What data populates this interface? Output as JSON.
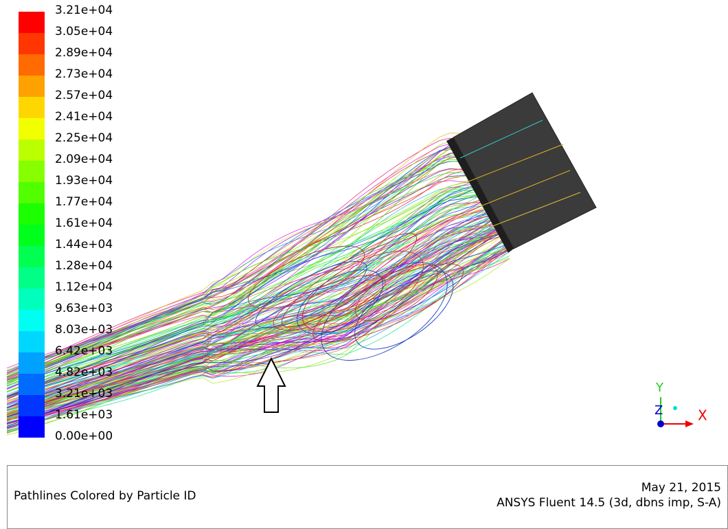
{
  "colorbar": {
    "labels": [
      "3.21e+04",
      "3.05e+04",
      "2.89e+04",
      "2.73e+04",
      "2.57e+04",
      "2.41e+04",
      "2.25e+04",
      "2.09e+04",
      "1.93e+04",
      "1.77e+04",
      "1.61e+04",
      "1.44e+04",
      "1.28e+04",
      "1.12e+04",
      "9.63e+03",
      "8.03e+03",
      "6.42e+03",
      "4.82e+03",
      "3.21e+03",
      "1.61e+03",
      "0.00e+00"
    ]
  },
  "triad": {
    "x": "X",
    "y": "Y",
    "z": "Z"
  },
  "footer": {
    "title": "Pathlines Colored by Particle ID",
    "date": "May 21, 2015",
    "version": "ANSYS Fluent 14.5 (3d, dbns imp, S-A)"
  }
}
